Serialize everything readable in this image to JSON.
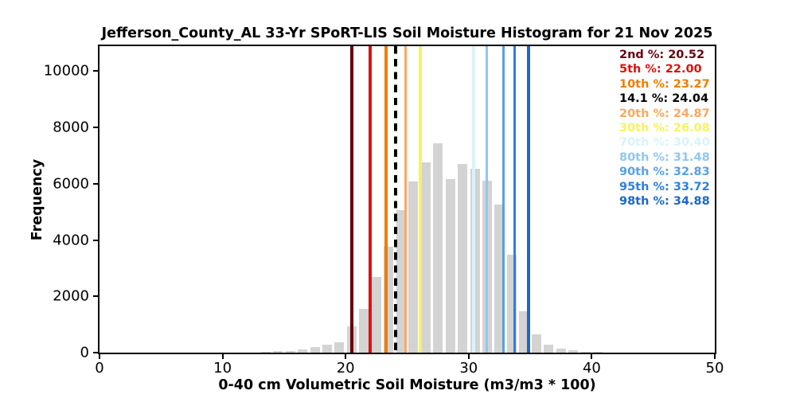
{
  "title": "Jefferson_County_AL 33-Yr SPoRT-LIS Soil Moisture Histogram for 21 Nov 2025",
  "axes": {
    "x_label": "0-40 cm Volumetric Soil Moisture (m3/m3 * 100)",
    "y_label": "Frequency",
    "x_ticks": [
      0,
      10,
      20,
      30,
      40,
      50
    ],
    "y_ticks": [
      0,
      2000,
      4000,
      6000,
      8000,
      10000
    ]
  },
  "chart_data": {
    "type": "bar",
    "title": "Jefferson_County_AL 33-Yr SPoRT-LIS Soil Moisture Histogram for 21 Nov 2025",
    "xlabel": "0-40 cm Volumetric Soil Moisture (m3/m3 * 100)",
    "ylabel": "Frequency",
    "xlim": [
      0,
      50
    ],
    "ylim": [
      0,
      10890
    ],
    "grid": false,
    "legend_position": "upper right",
    "bar_color": "#d3d3d3",
    "bin_edges": [
      13,
      14,
      15,
      16,
      17,
      18,
      19,
      20,
      21,
      22,
      23,
      24,
      25,
      26,
      27,
      28,
      29,
      30,
      31,
      32,
      33,
      34,
      35,
      36,
      37,
      38,
      39,
      40,
      41
    ],
    "counts": [
      15,
      45,
      60,
      105,
      210,
      280,
      355,
      930,
      1560,
      2690,
      3750,
      5070,
      6080,
      6760,
      7440,
      6170,
      6690,
      6520,
      6100,
      5270,
      3490,
      1460,
      660,
      290,
      155,
      75,
      30,
      15
    ],
    "percentiles": [
      {
        "label": "2nd %",
        "value": 20.52,
        "display": "20.52",
        "color": "#67000d",
        "style": "solid"
      },
      {
        "label": "5th %",
        "value": 22.0,
        "display": "22.00",
        "color": "#da1410",
        "style": "solid"
      },
      {
        "label": "10th %",
        "value": 23.27,
        "display": "23.27",
        "color": "#ee7d02",
        "style": "solid"
      },
      {
        "label": "14.1 %",
        "value": 24.04,
        "display": "24.04",
        "color": "#000000",
        "style": "dashed"
      },
      {
        "label": "20th %",
        "value": 24.87,
        "display": "24.87",
        "color": "#fba95e",
        "style": "solid"
      },
      {
        "label": "30th %",
        "value": 26.08,
        "display": "26.08",
        "color": "#f8f261",
        "style": "solid"
      },
      {
        "label": "70th %",
        "value": 30.4,
        "display": "30.40",
        "color": "#d9f3f9",
        "style": "solid"
      },
      {
        "label": "80th %",
        "value": 31.48,
        "display": "31.48",
        "color": "#92c7f0",
        "style": "solid"
      },
      {
        "label": "90th %",
        "value": 32.83,
        "display": "32.83",
        "color": "#57a1e4",
        "style": "solid"
      },
      {
        "label": "95th %",
        "value": 33.72,
        "display": "33.72",
        "color": "#2c80dc",
        "style": "solid"
      },
      {
        "label": "98th %",
        "value": 34.88,
        "display": "34.88",
        "color": "#1b67cc",
        "style": "solid"
      }
    ]
  }
}
